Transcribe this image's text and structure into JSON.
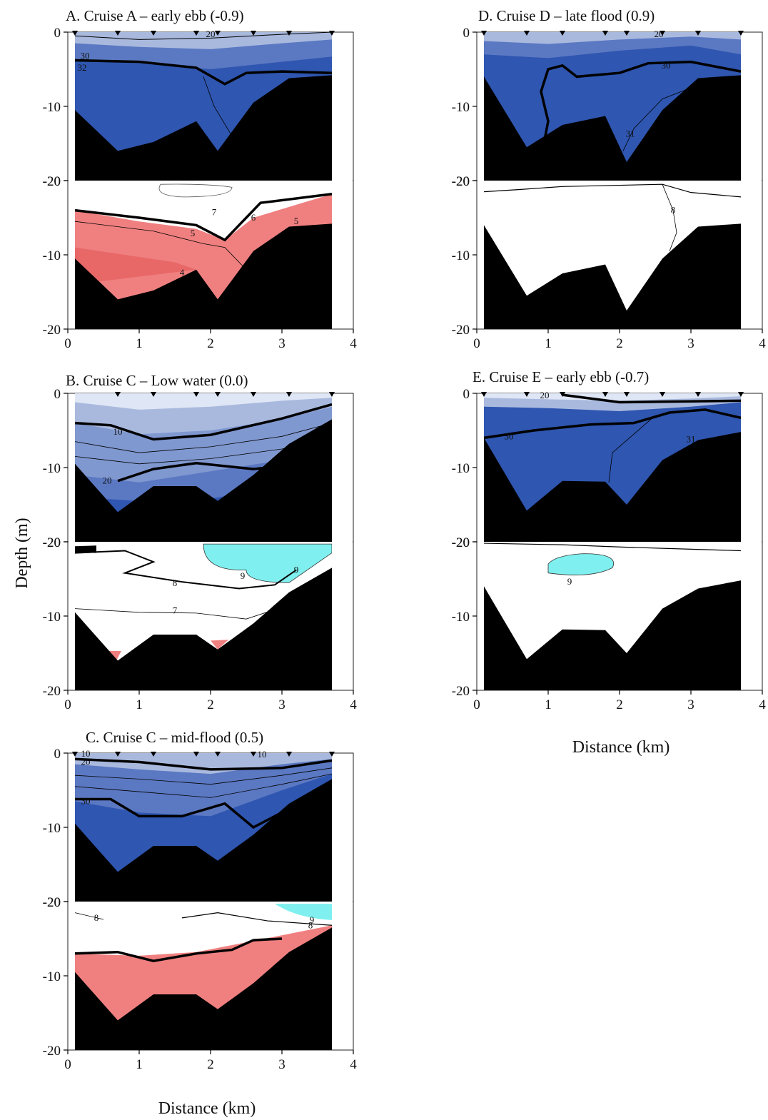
{
  "figure": {
    "ylabel": "Depth (m)",
    "xlabel": "Distance (km)",
    "y_ticks": [
      "0",
      "-10",
      "-20"
    ],
    "x_ticks": [
      "0",
      "1",
      "2",
      "3",
      "4"
    ]
  },
  "chart_data": [
    {
      "id": "A",
      "title": "A. Cruise A – early ebb (-0.9)",
      "type": "contour-section",
      "xlim": [
        0,
        4
      ],
      "ylim": [
        -20,
        0
      ],
      "stations_km": [
        0.1,
        0.7,
        1.2,
        1.8,
        2.1,
        2.6,
        3.1,
        3.7
      ],
      "bottom_profile": [
        [
          0.1,
          -10.5
        ],
        [
          0.7,
          -16
        ],
        [
          1.2,
          -14.8
        ],
        [
          1.8,
          -12
        ],
        [
          2.1,
          -16
        ],
        [
          2.6,
          -9.5
        ],
        [
          3.1,
          -6.2
        ],
        [
          3.7,
          -5.8
        ]
      ],
      "upper": {
        "variable": "salinity",
        "contour_labels": [
          "20",
          "30",
          "32"
        ],
        "bold_isoline": 30,
        "fill": "#2f56b0"
      },
      "lower": {
        "variable": "dissolved oxygen",
        "contour_labels": [
          "7",
          "6",
          "5",
          "4",
          "5"
        ],
        "bold_isoline": 6,
        "fill": "#f08080"
      }
    },
    {
      "id": "B",
      "title": "B. Cruise C – Low water (0.0)",
      "type": "contour-section",
      "xlim": [
        0,
        4
      ],
      "ylim": [
        -20,
        0
      ],
      "stations_km": [
        0.7,
        1.2,
        1.8,
        2.1,
        2.6,
        3.1,
        3.7
      ],
      "bottom_profile": [
        [
          0.1,
          -9.5
        ],
        [
          0.7,
          -16
        ],
        [
          1.2,
          -12.5
        ],
        [
          1.8,
          -12.5
        ],
        [
          2.1,
          -14.5
        ],
        [
          2.6,
          -11
        ],
        [
          3.1,
          -6.8
        ],
        [
          3.7,
          -3.5
        ]
      ],
      "upper": {
        "variable": "salinity",
        "contour_labels": [
          "10",
          "20"
        ],
        "bold_isoline": 10,
        "fill": "#a9b9de"
      },
      "lower": {
        "variable": "dissolved oxygen",
        "contour_labels": [
          "8",
          "9",
          "9",
          "7"
        ],
        "bold_isoline": 8,
        "fill": "#ffffff"
      }
    },
    {
      "id": "C",
      "title": "C. Cruise C – mid-flood (0.5)",
      "type": "contour-section",
      "xlim": [
        0,
        4
      ],
      "ylim": [
        -20,
        0
      ],
      "stations_km": [
        0.1,
        0.7,
        1.2,
        1.8,
        2.1,
        2.6,
        3.1,
        3.7
      ],
      "bottom_profile": [
        [
          0.1,
          -9.5
        ],
        [
          0.7,
          -16
        ],
        [
          1.2,
          -12.5
        ],
        [
          1.8,
          -12.5
        ],
        [
          2.1,
          -14.5
        ],
        [
          2.6,
          -11
        ],
        [
          3.1,
          -6.8
        ],
        [
          3.7,
          -3.5
        ]
      ],
      "upper": {
        "variable": "salinity",
        "contour_labels": [
          "10",
          "20",
          "10",
          "30"
        ],
        "bold_isoline": 30,
        "fill": "#2f56b0"
      },
      "lower": {
        "variable": "dissolved oxygen",
        "contour_labels": [
          "8",
          "9",
          "8"
        ],
        "bold_isoline": 8,
        "fill": "#f08080"
      }
    },
    {
      "id": "D",
      "title": "D. Cruise D – late flood (0.9)",
      "type": "contour-section",
      "xlim": [
        0,
        4
      ],
      "ylim": [
        -20,
        0
      ],
      "stations_km": [
        0.1,
        0.7,
        1.2,
        1.8,
        2.1,
        2.6,
        3.1,
        3.7
      ],
      "bottom_profile": [
        [
          0.1,
          -6
        ],
        [
          0.7,
          -15.5
        ],
        [
          1.2,
          -12.5
        ],
        [
          1.8,
          -11.3
        ],
        [
          2.1,
          -17.5
        ],
        [
          2.6,
          -10.5
        ],
        [
          3.1,
          -6.2
        ],
        [
          3.7,
          -5.8
        ]
      ],
      "upper": {
        "variable": "salinity",
        "contour_labels": [
          "20",
          "30",
          "31"
        ],
        "bold_isoline": 30,
        "fill": "#2f56b0"
      },
      "lower": {
        "variable": "dissolved oxygen",
        "contour_labels": [
          "8"
        ],
        "bold_isoline": 8,
        "fill": "#ffffff"
      }
    },
    {
      "id": "E",
      "title": "E. Cruise E – early ebb (-0.7)",
      "type": "contour-section",
      "xlim": [
        0,
        4
      ],
      "ylim": [
        -20,
        0
      ],
      "stations_km": [
        0.1,
        0.7,
        1.2,
        1.8,
        2.1,
        2.6,
        3.1,
        3.7
      ],
      "bottom_profile": [
        [
          0.1,
          -6
        ],
        [
          0.7,
          -15.8
        ],
        [
          1.2,
          -11.8
        ],
        [
          1.8,
          -11.9
        ],
        [
          2.1,
          -15
        ],
        [
          2.6,
          -9
        ],
        [
          3.1,
          -6.3
        ],
        [
          3.7,
          -5.2
        ]
      ],
      "upper": {
        "variable": "salinity",
        "contour_labels": [
          "20",
          "30",
          "31"
        ],
        "bold_isoline": 30,
        "fill": "#2f56b0"
      },
      "lower": {
        "variable": "dissolved oxygen",
        "contour_labels": [
          "9"
        ],
        "bold_isoline": 8,
        "fill": "#ffffff"
      }
    }
  ],
  "colors": {
    "bottom": "#000000",
    "deep_blue": "#2f56b0",
    "mid_blue": "#5b78c2",
    "light_blue": "#a9b9de",
    "pale_blue": "#dfe6f5",
    "red": "#f08080",
    "dark_red": "#e86868",
    "cyan": "#7ff0ef"
  }
}
